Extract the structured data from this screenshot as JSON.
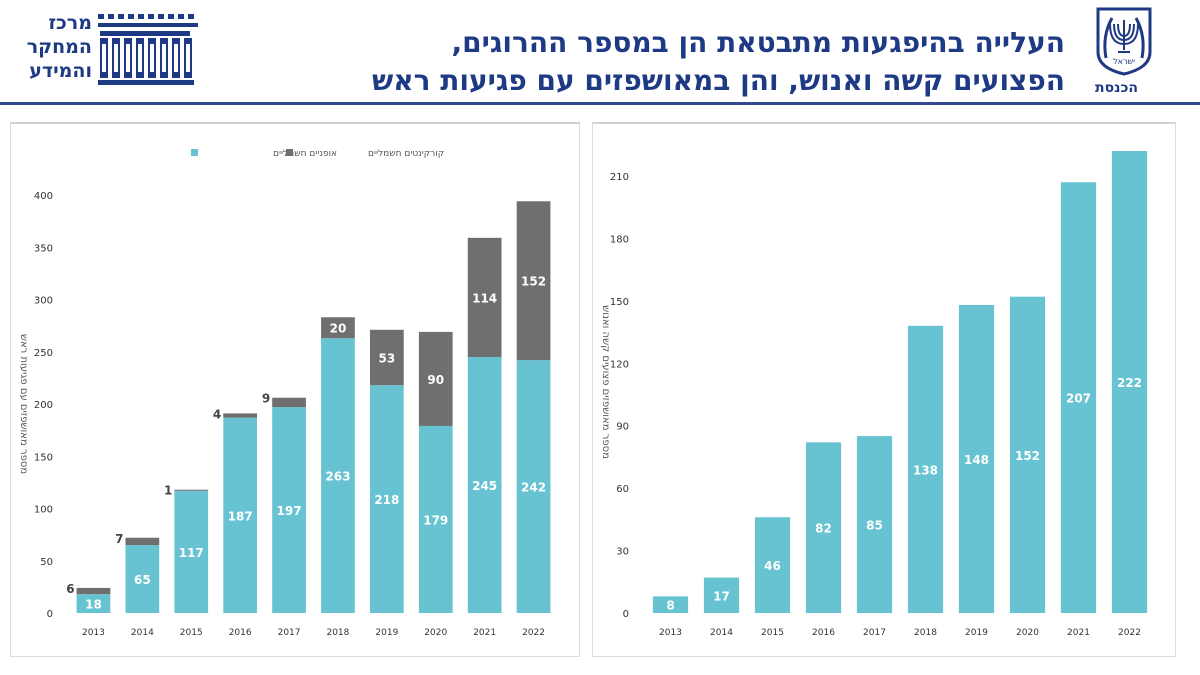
{
  "header": {
    "title_line1": "העלייה בהיפגעות מתבטאת הן במספר ההרוגים,",
    "title_line2": "הפצועים קשה ואנוש, והן במאושפזים עם פגיעות ראש",
    "center_logo_lines": [
      "מרכז",
      "המחקר",
      "והמידע"
    ],
    "knesset_label": "הכנסת",
    "emblem_text": "ישראל"
  },
  "colors": {
    "title": "#1e3a84",
    "cyan": "#67c3d1",
    "gray": "#716e6e"
  },
  "chart_data": [
    {
      "type": "bar",
      "stacked": true,
      "categories": [
        "2013",
        "2014",
        "2015",
        "2016",
        "2017",
        "2018",
        "2019",
        "2020",
        "2021",
        "2022"
      ],
      "series": [
        {
          "name": "אופניים חשמליים",
          "color": "#67c3d1",
          "values": [
            18,
            65,
            117,
            187,
            197,
            263,
            218,
            179,
            245,
            242
          ]
        },
        {
          "name": "קורקינטים חשמליים",
          "color": "#716e6e",
          "values": [
            6,
            7,
            1,
            4,
            9,
            20,
            53,
            90,
            114,
            152
          ]
        }
      ],
      "ylabel": "מספר מאושפזים עם פגיעות ראש",
      "ylim": [
        0,
        400
      ],
      "yticks": [
        0,
        50,
        100,
        150,
        200,
        250,
        300,
        350,
        400
      ],
      "legend": "top"
    },
    {
      "type": "bar",
      "categories": [
        "2013",
        "2014",
        "2015",
        "2016",
        "2017",
        "2018",
        "2019",
        "2020",
        "2021",
        "2022"
      ],
      "series": [
        {
          "color": "#67c3d1",
          "values": [
            8,
            17,
            46,
            82,
            85,
            138,
            148,
            152,
            207,
            222
          ]
        }
      ],
      "ylabel": "מספר מאושפזים פצועים קשה ואנוש",
      "ylim": [
        0,
        222
      ],
      "yticks": [
        0,
        30,
        60,
        90,
        120,
        150,
        180,
        210
      ]
    }
  ]
}
